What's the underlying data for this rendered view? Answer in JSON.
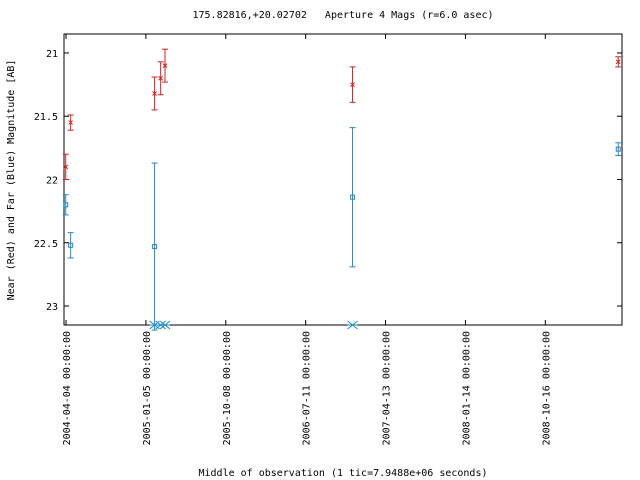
{
  "chart_data": {
    "type": "scatter",
    "title": "175.82816,+20.02702   Aperture 4 Mags (r=6.0 asec)",
    "xlabel": "Middle of observation (1 tic=7.9488e+06 seconds)",
    "ylabel": "Near (Red) and Far (Blue) Magnitude [AB]",
    "y_inverted": true,
    "ylim": [
      23.15,
      20.85
    ],
    "xlim": [
      "2004-03-28",
      "2009-07-08"
    ],
    "x_ticks": [
      "2004-04-04 00:00:00",
      "2005-01-05 00:00:00",
      "2005-10-08 00:00:00",
      "2006-07-11 00:00:00",
      "2007-04-13 00:00:00",
      "2008-01-14 00:00:00",
      "2008-10-16 00:00:00"
    ],
    "y_ticks": [
      21,
      21.5,
      22,
      22.5,
      23
    ],
    "grid": false,
    "legend": "none",
    "series": [
      {
        "color": "#d62020",
        "marker": "x",
        "points": [
          {
            "x": "2004-04-03",
            "y": 21.9,
            "err": 0.1
          },
          {
            "x": "2004-04-20",
            "y": 21.55,
            "err": 0.06
          },
          {
            "x": "2005-02-04",
            "y": 21.32,
            "err": 0.13
          },
          {
            "x": "2005-02-25",
            "y": 21.2,
            "err": 0.13
          },
          {
            "x": "2005-03-12",
            "y": 21.1,
            "err": 0.13
          },
          {
            "x": "2006-12-20",
            "y": 21.25,
            "err": 0.14
          },
          {
            "x": "2009-06-25",
            "y": 21.07,
            "err": 0.04
          }
        ]
      },
      {
        "color": "#1f8ac8",
        "marker": "square",
        "points": [
          {
            "x": "2004-04-03",
            "y": 22.2,
            "err": 0.08
          },
          {
            "x": "2004-04-20",
            "y": 22.52,
            "err": 0.1
          },
          {
            "x": "2005-02-04",
            "y": 22.53,
            "err": 0.66
          },
          {
            "x": "2006-12-20",
            "y": 22.14,
            "err": 0.55
          },
          {
            "x": "2009-06-25",
            "y": 21.76,
            "err": 0.05
          }
        ]
      },
      {
        "color": "#1f8ac8",
        "marker": "asterisk",
        "y_edge": "bottom",
        "points": [
          {
            "x": "2005-02-04"
          },
          {
            "x": "2005-02-25"
          },
          {
            "x": "2005-03-12"
          },
          {
            "x": "2006-12-20"
          }
        ]
      }
    ]
  }
}
